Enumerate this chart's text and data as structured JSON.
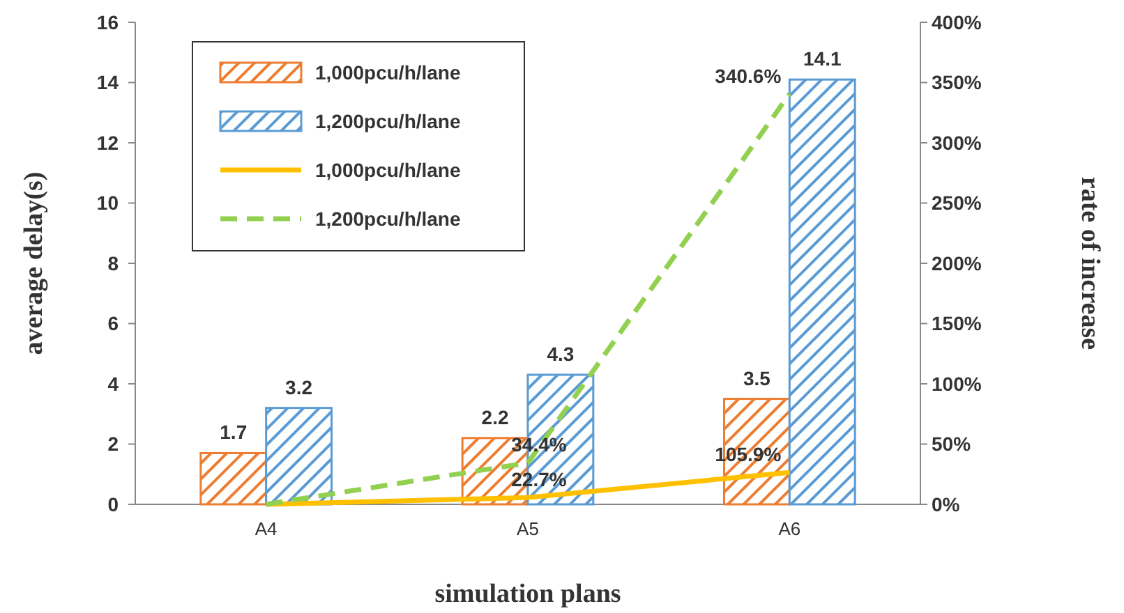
{
  "chart_data": {
    "type": "bar",
    "xlabel": "simulation  plans",
    "ylabel": "average delay(s)",
    "y2label": "rate of increase",
    "categories": [
      "A4",
      "A5",
      "A6"
    ],
    "series": [
      {
        "name": "1,000pcu/h/lane",
        "color": "#ed7d31",
        "values": [
          1.7,
          2.2,
          3.5
        ],
        "value_labels": [
          "1.7",
          "2.2",
          "3.5"
        ]
      },
      {
        "name": "1,200pcu/h/lane",
        "color": "#5b9bd5",
        "values": [
          3.2,
          4.3,
          14.1
        ],
        "value_labels": [
          "3.2",
          "4.3",
          "14.1"
        ]
      },
      {
        "name": "1,000pcu/h/lane",
        "type": "line",
        "axis": "y",
        "color": "#ffc000",
        "line_style": "solid",
        "values": [
          0,
          0.227,
          1.059
        ],
        "value_labels": [
          null,
          "22.7%",
          "105.9%"
        ]
      },
      {
        "name": "1,200pcu/h/lane",
        "type": "line",
        "axis": "y2",
        "color": "#92d050",
        "line_style": "dashed",
        "values": [
          0,
          34.4,
          340.6
        ],
        "value_labels": [
          null,
          "34.4%",
          "340.6%"
        ]
      }
    ],
    "ylim": [
      0,
      16
    ],
    "yticks": [
      0,
      2,
      4,
      6,
      8,
      10,
      12,
      14,
      16
    ],
    "y2lim": [
      0,
      400
    ],
    "y2ticks": [
      {
        "value": 0,
        "label": "0%"
      },
      {
        "value": 50,
        "label": "50%"
      },
      {
        "value": 100,
        "label": "100%"
      },
      {
        "value": 150,
        "label": "150%"
      },
      {
        "value": 200,
        "label": "200%"
      },
      {
        "value": 250,
        "label": "250%"
      },
      {
        "value": 300,
        "label": "300%"
      },
      {
        "value": 350,
        "label": "350%"
      },
      {
        "value": 400,
        "label": "400%"
      }
    ],
    "grid": false,
    "legend": "top left",
    "marker": "none"
  }
}
